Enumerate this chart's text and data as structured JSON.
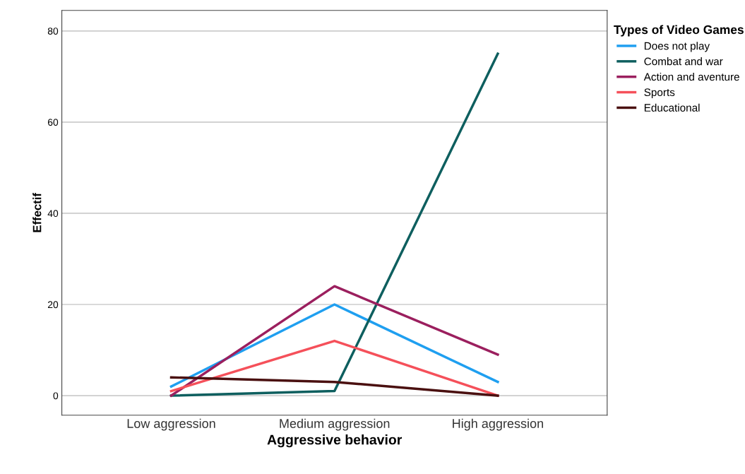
{
  "chart_data": {
    "type": "line",
    "xlabel": "Aggressive behavior",
    "ylabel": "Effectif",
    "legend_title": "Types of Video Games",
    "categories": [
      "Low aggression",
      "Medium aggression",
      "High aggression"
    ],
    "series": [
      {
        "name": "Does not play",
        "color": "#1f9ff0",
        "values": [
          2,
          20,
          3
        ]
      },
      {
        "name": "Combat and war",
        "color": "#0e5f5f",
        "values": [
          0,
          1,
          75
        ]
      },
      {
        "name": "Action and aventure",
        "color": "#9b1f5e",
        "values": [
          0,
          24,
          9
        ]
      },
      {
        "name": "Sports",
        "color": "#f5505a",
        "values": [
          1,
          12,
          0
        ]
      },
      {
        "name": "Educational",
        "color": "#4a1010",
        "values": [
          4,
          3,
          0
        ]
      }
    ],
    "ylim": [
      -4.3,
      84.5
    ],
    "yticks": [
      0,
      20,
      40,
      60,
      80
    ],
    "grid": "y",
    "legend": "right",
    "marker": "none",
    "line_style": "solid"
  }
}
